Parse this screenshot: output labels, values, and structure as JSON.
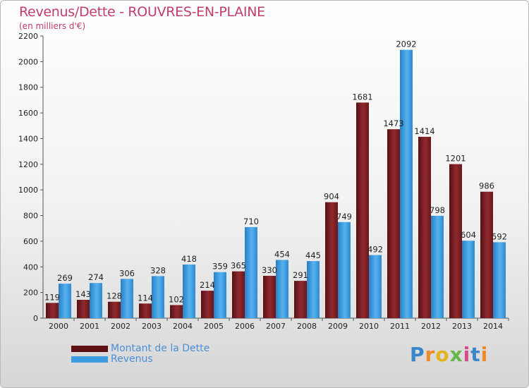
{
  "chart_data": {
    "type": "bar",
    "title": "Revenus/Dette - ROUVRES-EN-PLAINE",
    "subtitle": "(en milliers d'€)",
    "categories": [
      "2000",
      "2001",
      "2002",
      "2003",
      "2004",
      "2005",
      "2006",
      "2007",
      "2008",
      "2009",
      "2010",
      "2011",
      "2012",
      "2013",
      "2014"
    ],
    "series": [
      {
        "name": "Montant de la Dette",
        "color": "#7a1a1e",
        "values": [
          119,
          143,
          128,
          114,
          102,
          214,
          365,
          330,
          291,
          904,
          1681,
          1473,
          1414,
          1201,
          986
        ],
        "labels": [
          "119",
          "143",
          "128",
          "114",
          "102",
          "214",
          "365",
          "330",
          "291",
          "904",
          "1681",
          "1473",
          "1414",
          "1201",
          "986"
        ]
      },
      {
        "name": "Revenus",
        "color": "#3e9de0",
        "values": [
          269,
          274,
          306,
          328,
          418,
          359,
          710,
          454,
          445,
          749,
          492,
          2092,
          798,
          604,
          592
        ],
        "labels": [
          "269",
          "274",
          "306",
          "328",
          "418",
          "359",
          "710",
          "454",
          "445",
          "749",
          "492",
          "2092",
          "798",
          "604",
          "592"
        ]
      }
    ],
    "ylim": [
      0,
      2200
    ],
    "yticks": [
      "0",
      "200",
      "400",
      "600",
      "800",
      "1000",
      "1200",
      "1400",
      "1600",
      "1800",
      "2000",
      "2200"
    ],
    "grid": false,
    "legend": "bottom-left"
  },
  "logo": {
    "letters": [
      "P",
      "r",
      "o",
      "x",
      "i",
      "t",
      "i"
    ]
  }
}
